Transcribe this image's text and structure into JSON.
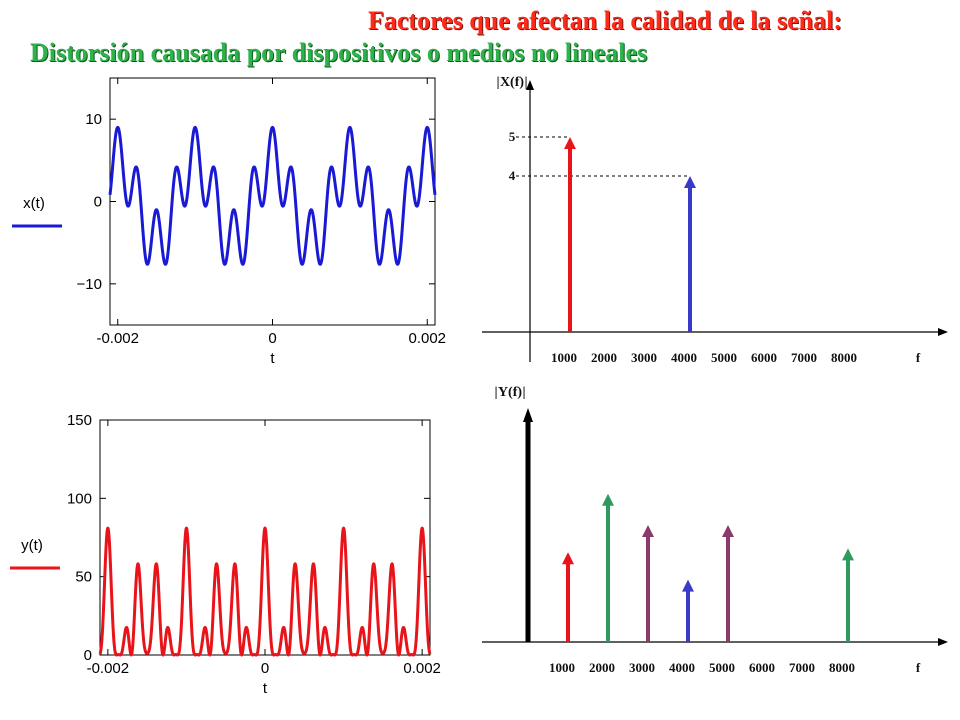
{
  "slide": {
    "title": "Factores que afectan la calidad de la señal:",
    "subtitle": "Distorsión causada por dispositivos o medios no lineales"
  },
  "colors": {
    "title": "#ff2a1a",
    "subtitle": "#2db34a",
    "x_signal": "#1a1ad6",
    "y_signal": "#e8141a",
    "red": "#e8141a",
    "blue": "#3a3ac8",
    "green": "#2f9a5e",
    "purple": "#8c3a6e",
    "black": "#000000"
  },
  "chart_data": [
    {
      "type": "line",
      "legend": "x(t)",
      "xlabel": "t",
      "xlim": [
        -0.0021,
        0.0021
      ],
      "ylim": [
        -15,
        15
      ],
      "xticks": [
        "-0.002",
        "0",
        "0.002"
      ],
      "xtick_values": [
        -0.002,
        0,
        0.002
      ],
      "yticks": [
        "10",
        "0",
        "−10"
      ],
      "ytick_values": [
        10,
        0,
        -10
      ],
      "color": "#1a1ad6"
    },
    {
      "type": "line",
      "legend": "y(t)",
      "xlabel": "t",
      "xlim": [
        -0.0021,
        0.0021
      ],
      "ylim": [
        0,
        150
      ],
      "xticks": [
        "-0.002",
        "0",
        "0.002"
      ],
      "xtick_values": [
        -0.002,
        0,
        0.002
      ],
      "yticks": [
        "150",
        "100",
        "50",
        "0"
      ],
      "ytick_values": [
        150,
        100,
        50,
        0
      ],
      "color": "#e8141a"
    },
    {
      "type": "bar",
      "title": "X(f)",
      "xlabel": "f",
      "xticks": [
        "1000",
        "2000",
        "3000",
        "4000",
        "5000",
        "6000",
        "7000",
        "8000"
      ],
      "xtick_values": [
        1000,
        2000,
        3000,
        4000,
        5000,
        6000,
        7000,
        8000
      ],
      "ylim": [
        0,
        6
      ],
      "y_marks": [
        "5",
        "4"
      ],
      "y_mark_values": [
        5,
        4
      ],
      "lines": [
        {
          "f": 1000,
          "value": 5,
          "color": "#e8141a"
        },
        {
          "f": 4000,
          "value": 4,
          "color": "#3a3ac8"
        }
      ]
    },
    {
      "type": "bar",
      "title": "Y(f)",
      "xlabel": "f",
      "xticks": [
        "1000",
        "2000",
        "3000",
        "4000",
        "5000",
        "6000",
        "7000",
        "8000"
      ],
      "xtick_values": [
        1000,
        2000,
        3000,
        4000,
        5000,
        6000,
        7000,
        8000
      ],
      "ylim": [
        0,
        6
      ],
      "lines": [
        {
          "f": 0,
          "value": 6,
          "color": "#000000"
        },
        {
          "f": 1000,
          "value": 2.3,
          "color": "#e8141a"
        },
        {
          "f": 2000,
          "value": 3.8,
          "color": "#2f9a5e"
        },
        {
          "f": 3000,
          "value": 3.0,
          "color": "#8c3a6e"
        },
        {
          "f": 4000,
          "value": 1.6,
          "color": "#3a3ac8"
        },
        {
          "f": 5000,
          "value": 3.0,
          "color": "#8c3a6e"
        },
        {
          "f": 8000,
          "value": 2.4,
          "color": "#2f9a5e"
        }
      ]
    }
  ]
}
